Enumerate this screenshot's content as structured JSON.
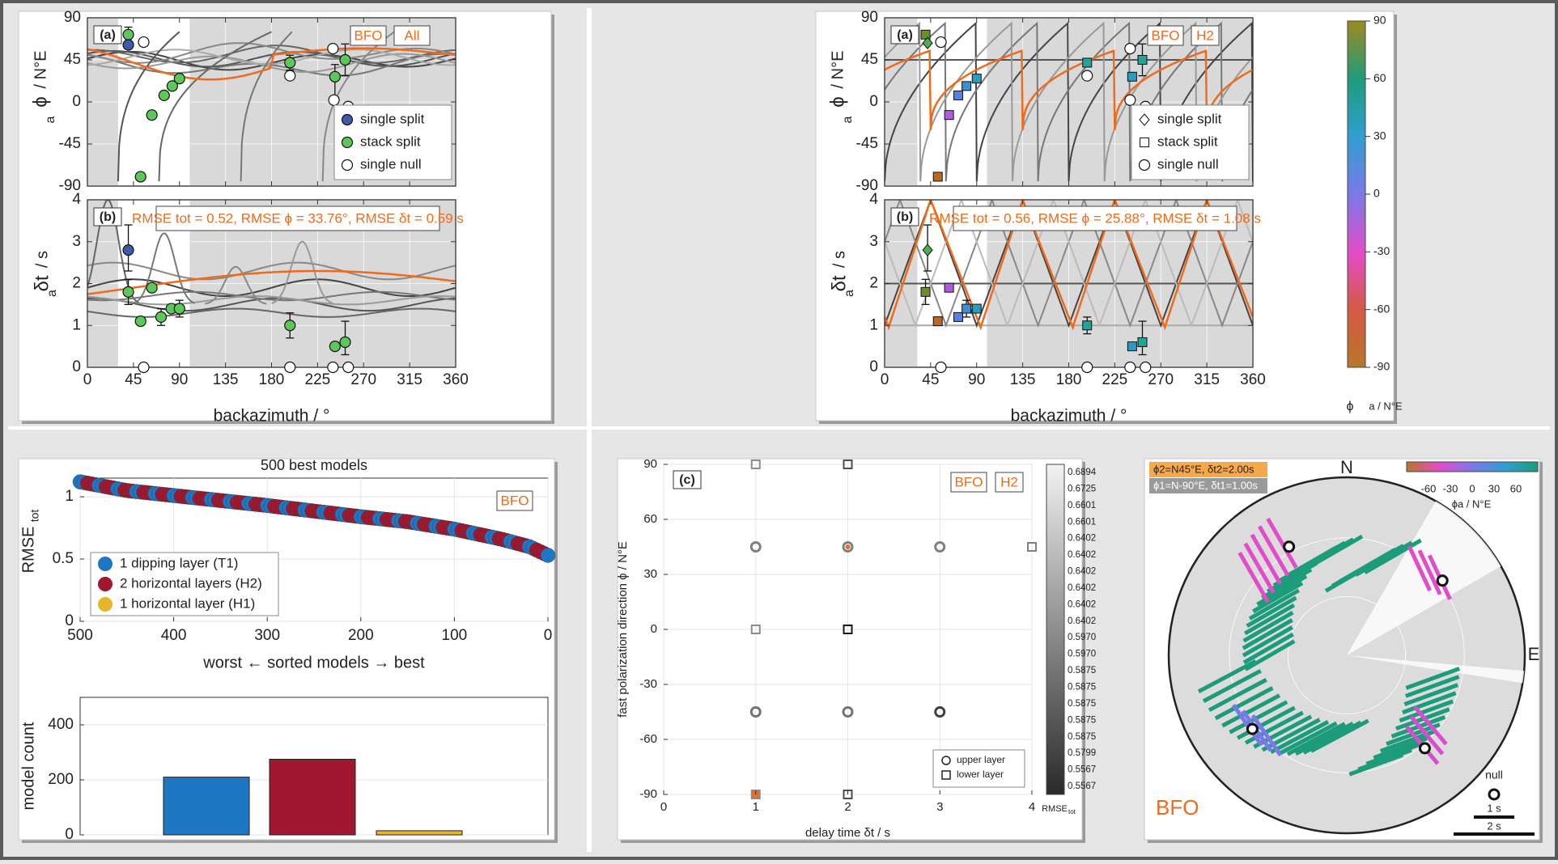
{
  "chart_data": [
    {
      "id": "left_top_phi",
      "type": "scatter",
      "panel_label": "(a)",
      "tags": [
        "BFO",
        "All"
      ],
      "xlabel": "",
      "ylabel": "ϕa / N°E",
      "xlim": [
        0,
        360
      ],
      "ylim": [
        -90,
        90
      ],
      "xticks": [
        0,
        45,
        90,
        135,
        180,
        225,
        270,
        315,
        360
      ],
      "yticks": [
        -90,
        -45,
        0,
        45,
        90
      ],
      "grid": true,
      "legend_placement": "bottom-right",
      "legend": [
        "single split",
        "stack split",
        "single null"
      ],
      "series": [
        {
          "name": "single split",
          "color": "#3f5aa8",
          "points": [
            [
              40,
              61
            ]
          ]
        },
        {
          "name": "stack split",
          "color": "#5cc85a",
          "points": [
            [
              40,
              72
            ],
            [
              52,
              -80
            ],
            [
              63,
              -14
            ],
            [
              75,
              7
            ],
            [
              83,
              17
            ],
            [
              90,
              25
            ],
            [
              198,
              42
            ],
            [
              242,
              27
            ],
            [
              252,
              45
            ]
          ]
        },
        {
          "name": "single null",
          "color": "#ffffff",
          "points": [
            [
              55,
              64
            ],
            [
              198,
              28
            ],
            [
              240,
              57
            ],
            [
              241,
              2
            ],
            [
              255,
              -5
            ]
          ]
        }
      ],
      "orange_model_note": "best model prediction shown as orange curve"
    },
    {
      "id": "left_top_dt",
      "type": "scatter",
      "panel_label": "(b)",
      "annotation": "RMSE tot = 0.52, RMSE ϕ = 33.76°, RMSE δt = 0.59 s",
      "xlabel": "backazimuth / °",
      "ylabel": "δta / s",
      "xlim": [
        0,
        360
      ],
      "ylim": [
        0,
        4
      ],
      "xticks": [
        0,
        45,
        90,
        135,
        180,
        225,
        270,
        315,
        360
      ],
      "yticks": [
        0,
        1,
        2,
        3,
        4
      ],
      "series": [
        {
          "name": "single split",
          "color": "#3f5aa8",
          "points": [
            [
              40,
              2.8
            ]
          ]
        },
        {
          "name": "stack split",
          "color": "#5cc85a",
          "points": [
            [
              40,
              1.8
            ],
            [
              52,
              1.1
            ],
            [
              63,
              1.9
            ],
            [
              72,
              1.2
            ],
            [
              82,
              1.4
            ],
            [
              90,
              1.4
            ],
            [
              198,
              1.0
            ],
            [
              242,
              0.5
            ],
            [
              252,
              0.6
            ]
          ]
        },
        {
          "name": "single null",
          "color": "#ffffff",
          "points": [
            [
              55,
              0
            ],
            [
              198,
              0
            ],
            [
              240,
              0
            ],
            [
              255,
              0
            ]
          ]
        }
      ]
    },
    {
      "id": "right_top_phi",
      "type": "scatter",
      "panel_label": "(a)",
      "tags": [
        "BFO",
        "H2"
      ],
      "xlabel": "",
      "ylabel": "ϕa / N°E",
      "xlim": [
        0,
        360
      ],
      "ylim": [
        -90,
        90
      ],
      "xticks": [
        0,
        45,
        90,
        135,
        180,
        225,
        270,
        315,
        360
      ],
      "yticks": [
        -90,
        -45,
        0,
        45,
        90
      ],
      "legend_placement": "bottom-right",
      "legend": [
        "single split",
        "stack split",
        "single null"
      ],
      "colorbar": {
        "label": "ϕa / N°E",
        "ticks": [
          -90,
          -60,
          -30,
          0,
          30,
          60,
          90
        ]
      },
      "points": [
        {
          "x": 40,
          "y": 72,
          "marker": "square",
          "color": "#6b8f2a"
        },
        {
          "x": 42,
          "y": 63,
          "marker": "diamond",
          "color": "#4fae55"
        },
        {
          "x": 55,
          "y": 64,
          "marker": "circle",
          "color": "#ffffff"
        },
        {
          "x": 52,
          "y": -80,
          "marker": "square",
          "color": "#b86a25"
        },
        {
          "x": 63,
          "y": -14,
          "marker": "square",
          "color": "#b15be0"
        },
        {
          "x": 72,
          "y": 7,
          "marker": "square",
          "color": "#5a7fe0"
        },
        {
          "x": 80,
          "y": 17,
          "marker": "square",
          "color": "#3f8fd0"
        },
        {
          "x": 90,
          "y": 25,
          "marker": "square",
          "color": "#2b9cc0"
        },
        {
          "x": 198,
          "y": 42,
          "marker": "square",
          "color": "#23a49a"
        },
        {
          "x": 198,
          "y": 28,
          "marker": "circle",
          "color": "#ffffff"
        },
        {
          "x": 240,
          "y": 57,
          "marker": "circle",
          "color": "#ffffff"
        },
        {
          "x": 240,
          "y": 2,
          "marker": "circle",
          "color": "#ffffff"
        },
        {
          "x": 242,
          "y": 27,
          "marker": "square",
          "color": "#2b9cc0"
        },
        {
          "x": 252,
          "y": 45,
          "marker": "square",
          "color": "#23a49a"
        },
        {
          "x": 255,
          "y": -5,
          "marker": "circle",
          "color": "#ffffff"
        }
      ]
    },
    {
      "id": "right_top_dt",
      "type": "scatter",
      "panel_label": "(b)",
      "annotation": "RMSE tot = 0.56, RMSE ϕ = 25.88°, RMSE δt = 1.08 s",
      "xlabel": "backazimuth / °",
      "ylabel": "δta / s",
      "xlim": [
        0,
        360
      ],
      "ylim": [
        0,
        4
      ],
      "xticks": [
        0,
        45,
        90,
        135,
        180,
        225,
        270,
        315,
        360
      ],
      "yticks": [
        0,
        1,
        2,
        3,
        4
      ],
      "points": [
        {
          "x": 42,
          "y": 2.8,
          "marker": "diamond",
          "color": "#4fae55"
        },
        {
          "x": 40,
          "y": 1.8,
          "marker": "square",
          "color": "#6b8f2a"
        },
        {
          "x": 52,
          "y": 1.1,
          "marker": "square",
          "color": "#b86a25"
        },
        {
          "x": 63,
          "y": 1.9,
          "marker": "square",
          "color": "#b15be0"
        },
        {
          "x": 72,
          "y": 1.2,
          "marker": "square",
          "color": "#5a7fe0"
        },
        {
          "x": 80,
          "y": 1.4,
          "marker": "square",
          "color": "#3f8fd0"
        },
        {
          "x": 90,
          "y": 1.4,
          "marker": "square",
          "color": "#2b9cc0"
        },
        {
          "x": 198,
          "y": 1.0,
          "marker": "square",
          "color": "#23a49a"
        },
        {
          "x": 242,
          "y": 0.5,
          "marker": "square",
          "color": "#2b9cc0"
        },
        {
          "x": 252,
          "y": 0.6,
          "marker": "square",
          "color": "#23a49a"
        },
        {
          "x": 55,
          "y": 0,
          "marker": "circle",
          "color": "#ffffff"
        },
        {
          "x": 198,
          "y": 0,
          "marker": "circle",
          "color": "#ffffff"
        },
        {
          "x": 240,
          "y": 0,
          "marker": "circle",
          "color": "#ffffff"
        },
        {
          "x": 255,
          "y": 0,
          "marker": "circle",
          "color": "#ffffff"
        }
      ]
    },
    {
      "id": "models_rmse",
      "type": "scatter",
      "title": "500 best models",
      "tag": "BFO",
      "xlabel": "worst ← sorted models → best",
      "ylabel": "RMSEtot",
      "xlim": [
        500,
        0
      ],
      "ylim": [
        0,
        1.15
      ],
      "xticks": [
        500,
        400,
        300,
        200,
        100,
        0
      ],
      "yticks": [
        0,
        0.5,
        1
      ],
      "legend_placement": "bottom-left",
      "series": [
        {
          "name": "1 dipping layer (T1)",
          "color": "#1f77c4"
        },
        {
          "name": "2 horizontal layers (H2)",
          "color": "#a0182f"
        },
        {
          "name": "1 horizontal layer (H1)",
          "color": "#e7b52a"
        }
      ],
      "curve_samples": [
        [
          500,
          1.12
        ],
        [
          450,
          1.05
        ],
        [
          400,
          1.01
        ],
        [
          300,
          0.93
        ],
        [
          200,
          0.84
        ],
        [
          150,
          0.8
        ],
        [
          100,
          0.74
        ],
        [
          50,
          0.66
        ],
        [
          20,
          0.6
        ],
        [
          0,
          0.53
        ]
      ]
    },
    {
      "id": "models_count",
      "type": "bar",
      "ylabel": "model count",
      "ylim": [
        0,
        500
      ],
      "yticks": [
        0,
        200,
        400
      ],
      "categories": [
        "T1",
        "H2",
        "H1"
      ],
      "values": [
        210,
        275,
        15
      ],
      "colors": [
        "#1f77c4",
        "#a0182f",
        "#e7b52a"
      ]
    },
    {
      "id": "grid_search",
      "type": "scatter",
      "panel_label": "(c)",
      "tags": [
        "BFO",
        "H2"
      ],
      "xlabel": "delay time δt / s",
      "ylabel": "fast polarization direction ϕ / N°E",
      "xlim": [
        0,
        4
      ],
      "ylim": [
        -90,
        90
      ],
      "xticks": [
        0,
        1,
        2,
        3,
        4
      ],
      "yticks": [
        -90,
        -60,
        -30,
        0,
        30,
        60,
        90
      ],
      "legend_placement": "bottom-right",
      "legend": [
        "upper layer",
        "lower layer"
      ],
      "colorbar": {
        "label": "RMSEtot",
        "ticks": [
          "0.6894",
          "0.6725",
          "0.6601",
          "0.6601",
          "0.6402",
          "0.6402",
          "0.6402",
          "0.6402",
          "0.6402",
          "0.6402",
          "0.5970",
          "0.5970",
          "0.5875",
          "0.5875",
          "0.5875",
          "0.5875",
          "0.5875",
          "0.5799",
          "0.5567",
          "0.5567"
        ]
      },
      "points": [
        {
          "x": 1,
          "y": 90,
          "marker": "square",
          "shade": 0.45
        },
        {
          "x": 2,
          "y": 90,
          "marker": "square",
          "shade": 0.7
        },
        {
          "x": 1,
          "y": 45,
          "marker": "circle",
          "shade": 0.5
        },
        {
          "x": 2,
          "y": 45,
          "marker": "circle",
          "shade": 0.5,
          "best": true
        },
        {
          "x": 3,
          "y": 45,
          "marker": "circle",
          "shade": 0.5
        },
        {
          "x": 4,
          "y": 45,
          "marker": "square",
          "shade": 0.5
        },
        {
          "x": 1,
          "y": 0,
          "marker": "square",
          "shade": 0.45
        },
        {
          "x": 2,
          "y": 0,
          "marker": "square",
          "shade": 0.9
        },
        {
          "x": 1,
          "y": -45,
          "marker": "circle",
          "shade": 0.55
        },
        {
          "x": 2,
          "y": -45,
          "marker": "circle",
          "shade": 0.55
        },
        {
          "x": 3,
          "y": -45,
          "marker": "circle",
          "shade": 0.75
        },
        {
          "x": 1,
          "y": -90,
          "marker": "square",
          "shade": 0.45,
          "best": true
        },
        {
          "x": 2,
          "y": -90,
          "marker": "square",
          "shade": 0.7
        }
      ]
    },
    {
      "id": "stereoplot",
      "type": "scatter",
      "station": "BFO",
      "label_upper": "ϕ2=N45°E,  δt2=2.00s",
      "label_lower": "ϕ1=N-90°E,  δt1=1.00s",
      "colorbar": {
        "label": "ϕa / N°E",
        "ticks": [
          -60,
          -30,
          0,
          30,
          60
        ]
      },
      "directions": [
        "N",
        "E"
      ],
      "legend": [
        "null",
        "1 s",
        "2 s"
      ]
    }
  ]
}
